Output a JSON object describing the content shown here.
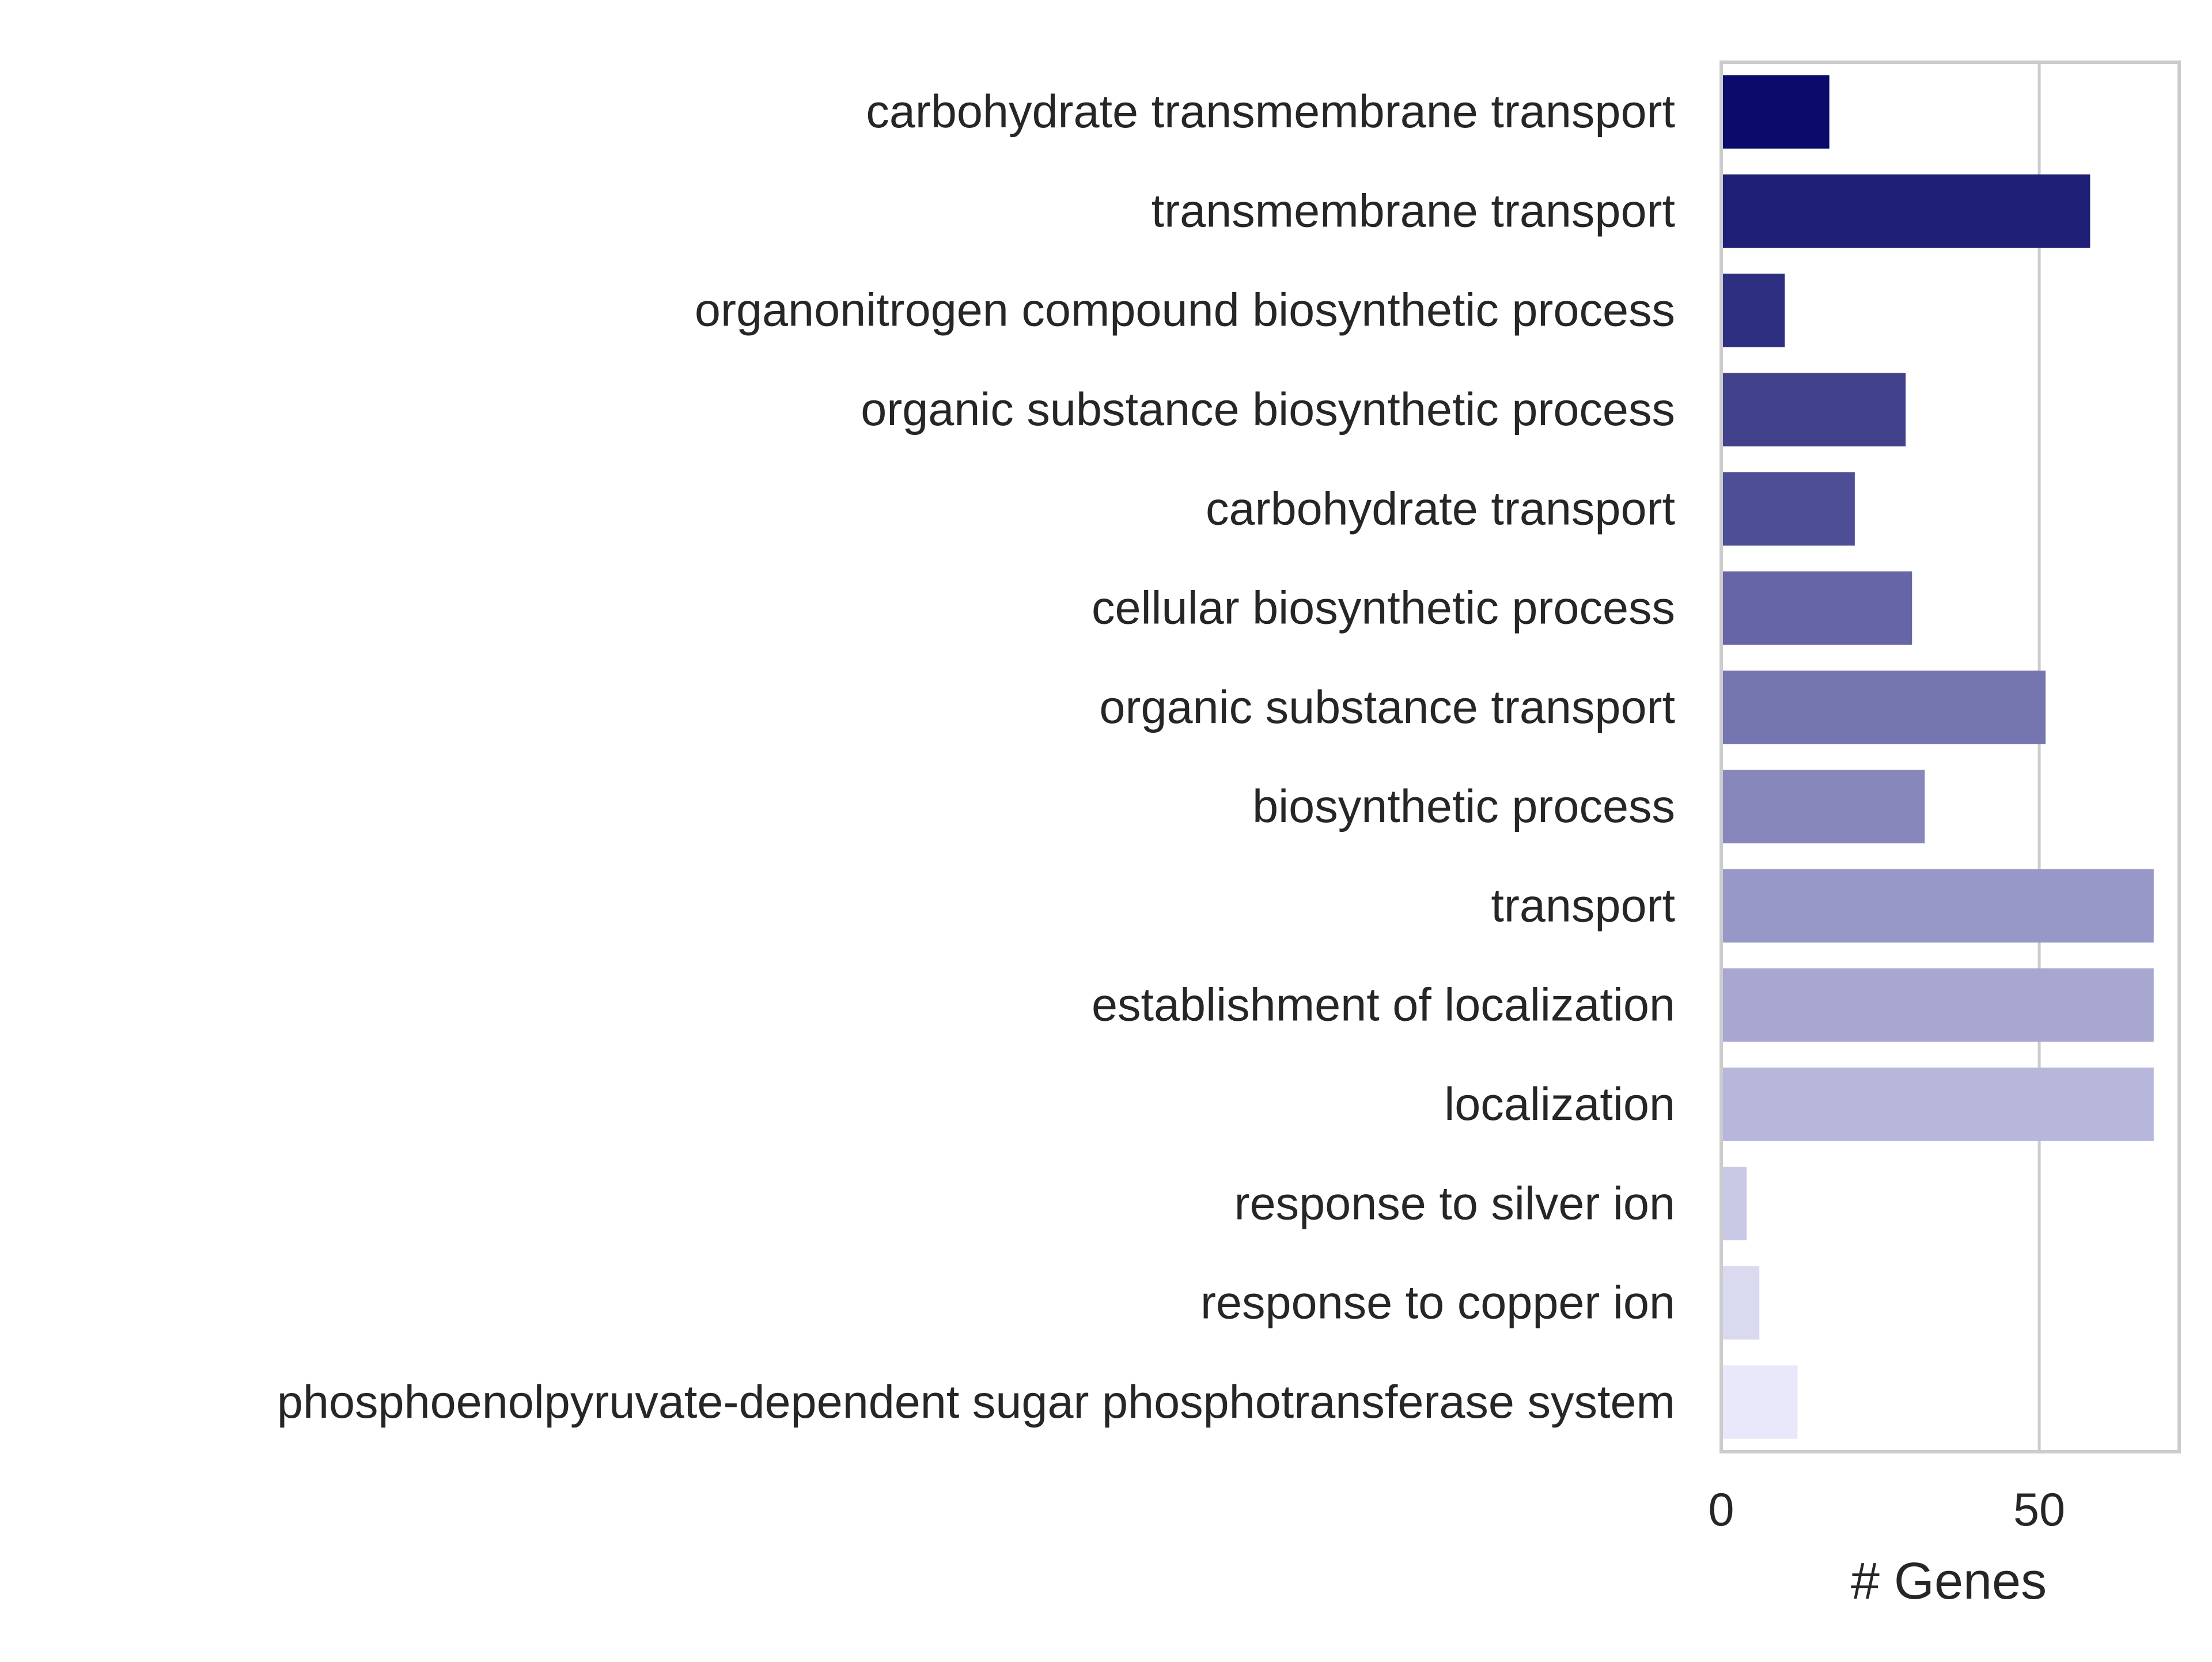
{
  "chart_data": {
    "type": "bar",
    "orientation": "horizontal",
    "categories": [
      "carbohydrate transmembrane transport",
      "transmembrane transport",
      "organonitrogen compound biosynthetic process",
      "organic substance biosynthetic process",
      "carbohydrate transport",
      "cellular biosynthetic process",
      "organic substance transport",
      "biosynthetic process",
      "transport",
      "establishment of localization",
      "localization",
      "response to silver ion",
      "response to copper ion",
      "phosphoenolpyruvate-dependent sugar phosphotransferase system"
    ],
    "values": [
      17,
      58,
      10,
      29,
      21,
      30,
      51,
      32,
      68,
      68,
      68,
      4,
      6,
      12
    ],
    "colors": [
      "#0b0b6b",
      "#1f1f78",
      "#2f2f82",
      "#42428c",
      "#4e4e96",
      "#6666a6",
      "#7575b0",
      "#8787bb",
      "#9898c8",
      "#a7a7d2",
      "#b7b7dc",
      "#c9c9e6",
      "#d9d9f0",
      "#e8e8fa"
    ],
    "xlabel": "# Genes",
    "ylabel": "",
    "title": "",
    "xticks": [
      0,
      50
    ],
    "xlim": [
      0,
      72
    ],
    "grid": true
  }
}
